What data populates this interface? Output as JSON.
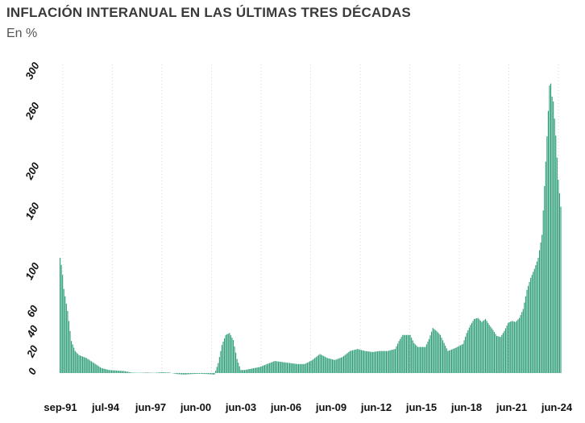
{
  "chart_data": {
    "type": "bar",
    "title": "INFLACIÓN INTERANUAL EN LAS ÚLTIMAS TRES DÉCADAS",
    "subtitle": "En %",
    "xlabel": "",
    "ylabel": "",
    "ylim": [
      -4,
      300
    ],
    "y_ticks": [
      0,
      20,
      40,
      60,
      100,
      160,
      200,
      260,
      300
    ],
    "x_tick_labels": [
      "sep-91",
      "jul-94",
      "jun-97",
      "jun-00",
      "jun-03",
      "jun-06",
      "jun-09",
      "jun-12",
      "jun-15",
      "jun-18",
      "jun-21",
      "jun-24"
    ],
    "x_start": "1991-09",
    "x_end": "2024-12",
    "grid": "vertical-dotted",
    "bar_color": "#2e9e78",
    "series": [
      {
        "values_anchor": [
          [
            "1991-09",
            115
          ],
          [
            "1991-10",
            108
          ],
          [
            "1991-11",
            98
          ],
          [
            "1991-12",
            84
          ],
          [
            "1992-03",
            62
          ],
          [
            "1992-06",
            32
          ],
          [
            "1992-09",
            22
          ],
          [
            "1992-12",
            18
          ],
          [
            "1993-06",
            15
          ],
          [
            "1993-12",
            10
          ],
          [
            "1994-06",
            5
          ],
          [
            "1994-12",
            3
          ],
          [
            "1995-06",
            2.5
          ],
          [
            "1995-12",
            2
          ],
          [
            "1996-06",
            0.5
          ],
          [
            "1996-12",
            0.2
          ],
          [
            "1997-06",
            0.5
          ],
          [
            "1997-12",
            0.2
          ],
          [
            "1998-06",
            0.8
          ],
          [
            "1998-12",
            0.5
          ],
          [
            "1999-06",
            -1
          ],
          [
            "1999-12",
            -1.5
          ],
          [
            "2000-06",
            -1
          ],
          [
            "2000-12",
            -0.7
          ],
          [
            "2001-06",
            -1
          ],
          [
            "2001-12",
            -1.5
          ],
          [
            "2002-03",
            10
          ],
          [
            "2002-06",
            28
          ],
          [
            "2002-09",
            38
          ],
          [
            "2002-12",
            40
          ],
          [
            "2003-03",
            33
          ],
          [
            "2003-06",
            14
          ],
          [
            "2003-09",
            3
          ],
          [
            "2003-12",
            3
          ],
          [
            "2004-06",
            4.5
          ],
          [
            "2004-12",
            6
          ],
          [
            "2005-06",
            9
          ],
          [
            "2005-12",
            12
          ],
          [
            "2006-06",
            11
          ],
          [
            "2006-12",
            10
          ],
          [
            "2007-06",
            9
          ],
          [
            "2007-12",
            9
          ],
          [
            "2008-06",
            13
          ],
          [
            "2008-12",
            19
          ],
          [
            "2009-06",
            15
          ],
          [
            "2009-12",
            13
          ],
          [
            "2010-06",
            16
          ],
          [
            "2010-12",
            22
          ],
          [
            "2011-06",
            24
          ],
          [
            "2011-12",
            22
          ],
          [
            "2012-06",
            21
          ],
          [
            "2012-12",
            22
          ],
          [
            "2013-06",
            22
          ],
          [
            "2013-12",
            24
          ],
          [
            "2014-03",
            32
          ],
          [
            "2014-06",
            38
          ],
          [
            "2014-12",
            38
          ],
          [
            "2015-03",
            30
          ],
          [
            "2015-06",
            26
          ],
          [
            "2015-12",
            26
          ],
          [
            "2016-03",
            34
          ],
          [
            "2016-06",
            45
          ],
          [
            "2016-09",
            42
          ],
          [
            "2016-12",
            38
          ],
          [
            "2017-03",
            30
          ],
          [
            "2017-06",
            22
          ],
          [
            "2017-12",
            25
          ],
          [
            "2018-06",
            29
          ],
          [
            "2018-09",
            40
          ],
          [
            "2018-12",
            48
          ],
          [
            "2019-03",
            54
          ],
          [
            "2019-06",
            55
          ],
          [
            "2019-09",
            51
          ],
          [
            "2019-12",
            54
          ],
          [
            "2020-03",
            48
          ],
          [
            "2020-06",
            43
          ],
          [
            "2020-09",
            37
          ],
          [
            "2020-12",
            36
          ],
          [
            "2021-03",
            42
          ],
          [
            "2021-06",
            50
          ],
          [
            "2021-09",
            52
          ],
          [
            "2021-12",
            51
          ],
          [
            "2022-03",
            55
          ],
          [
            "2022-06",
            64
          ],
          [
            "2022-09",
            83
          ],
          [
            "2022-12",
            95
          ],
          [
            "2023-03",
            104
          ],
          [
            "2023-06",
            115
          ],
          [
            "2023-09",
            138
          ],
          [
            "2023-12",
            211
          ],
          [
            "2024-03",
            287
          ],
          [
            "2024-04",
            289
          ],
          [
            "2024-05",
            276
          ],
          [
            "2024-06",
            271
          ],
          [
            "2024-08",
            237
          ],
          [
            "2024-10",
            193
          ],
          [
            "2024-12",
            166
          ]
        ]
      }
    ]
  }
}
